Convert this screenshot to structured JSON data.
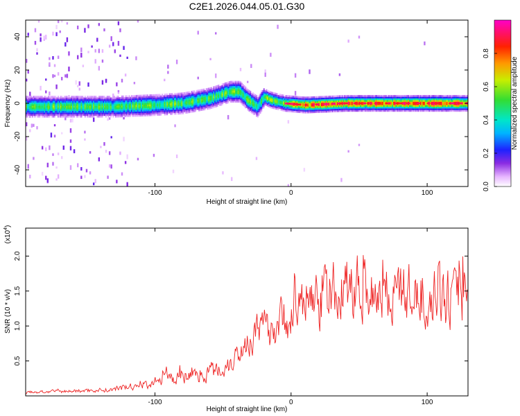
{
  "title": "C2E1.2026.044.05.01.G30",
  "chart_data": [
    {
      "type": "heatmap",
      "xlabel": "Height of straight line (km)",
      "ylabel": "Frequency (Hz)",
      "xlim": [
        -195,
        130
      ],
      "ylim": [
        -50,
        50
      ],
      "xticks": [
        -100,
        0,
        100
      ],
      "yticks": [
        -40,
        -20,
        0,
        20,
        40
      ],
      "colorbar": {
        "label": "Normalized spectral amplitude",
        "range": [
          0,
          1
        ],
        "ticks": [
          "0.0",
          "0.2",
          "0.4",
          "0.6",
          "0.8"
        ]
      },
      "ridge_frequency": [
        {
          "x": -195,
          "y": -2
        },
        {
          "x": -160,
          "y": -2
        },
        {
          "x": -130,
          "y": -2
        },
        {
          "x": -100,
          "y": -1
        },
        {
          "x": -80,
          "y": 0
        },
        {
          "x": -60,
          "y": 3
        },
        {
          "x": -45,
          "y": 7
        },
        {
          "x": -38,
          "y": 7
        },
        {
          "x": -32,
          "y": 2
        },
        {
          "x": -25,
          "y": -2
        },
        {
          "x": -20,
          "y": 4
        },
        {
          "x": -15,
          "y": 2
        },
        {
          "x": -5,
          "y": 0
        },
        {
          "x": 10,
          "y": -1
        },
        {
          "x": 40,
          "y": 0
        },
        {
          "x": 80,
          "y": 0
        },
        {
          "x": 130,
          "y": 0
        }
      ]
    },
    {
      "type": "line",
      "xlabel": "Height of straight line (km)",
      "ylabel": "SNR (10 * v/v)",
      "y_multiplier": "(x10",
      "y_exponent": "4",
      "xlim": [
        -195,
        130
      ],
      "ylim": [
        0,
        24000
      ],
      "xticks": [
        -100,
        0,
        100
      ],
      "yticks": [
        5000,
        10000,
        15000,
        20000
      ],
      "ytick_labels": [
        "0.5",
        "1.0",
        "1.5",
        "2.0"
      ],
      "series": [
        {
          "name": "SNR",
          "color": "#ee2222",
          "envelope": [
            {
              "x": -195,
              "y": 500
            },
            {
              "x": -160,
              "y": 700
            },
            {
              "x": -130,
              "y": 900
            },
            {
              "x": -110,
              "y": 1500
            },
            {
              "x": -90,
              "y": 2500
            },
            {
              "x": -70,
              "y": 3000
            },
            {
              "x": -50,
              "y": 4000
            },
            {
              "x": -40,
              "y": 6000
            },
            {
              "x": -35,
              "y": 7000
            },
            {
              "x": -30,
              "y": 8500
            },
            {
              "x": -20,
              "y": 9500
            },
            {
              "x": -10,
              "y": 10500
            },
            {
              "x": 0,
              "y": 11500
            },
            {
              "x": 10,
              "y": 13000
            },
            {
              "x": 20,
              "y": 14000
            },
            {
              "x": 35,
              "y": 15000
            },
            {
              "x": 50,
              "y": 15500
            },
            {
              "x": 70,
              "y": 15000
            },
            {
              "x": 90,
              "y": 14500
            },
            {
              "x": 110,
              "y": 14000
            },
            {
              "x": 130,
              "y": 14000
            }
          ]
        }
      ]
    }
  ],
  "colors": {
    "line": "#ee2222",
    "axis": "#000000"
  }
}
